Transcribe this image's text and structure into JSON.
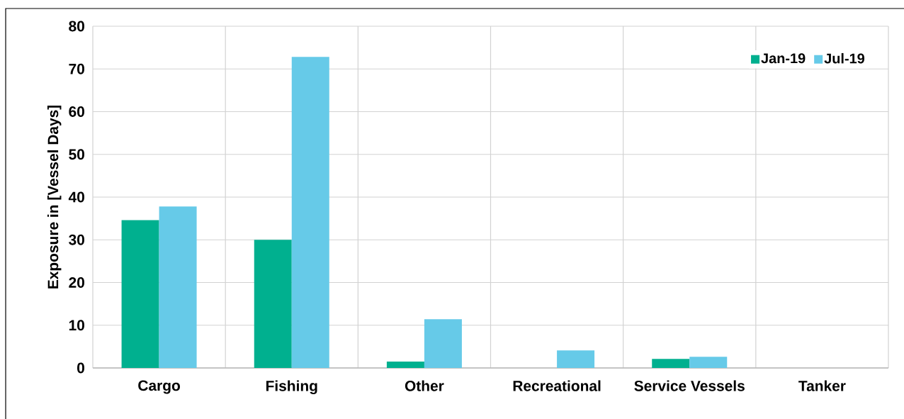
{
  "chart_data": {
    "type": "bar",
    "ylabel": "Exposure in [Vessel Days]",
    "categories": [
      "Cargo",
      "Fishing",
      "Other",
      "Recreational",
      "Service Vessels",
      "Tanker"
    ],
    "series": [
      {
        "name": "Jan-19",
        "color": "#00b08f",
        "values": [
          34.6,
          30.0,
          1.5,
          0,
          2.1,
          0
        ]
      },
      {
        "name": "Jul-19",
        "color": "#66cae8",
        "values": [
          37.8,
          72.8,
          11.4,
          4.1,
          2.6,
          0
        ]
      }
    ],
    "ylim": [
      0,
      80
    ],
    "yticks": [
      0,
      10,
      20,
      30,
      40,
      50,
      60,
      70,
      80
    ],
    "grid": true,
    "legend": "top right"
  }
}
